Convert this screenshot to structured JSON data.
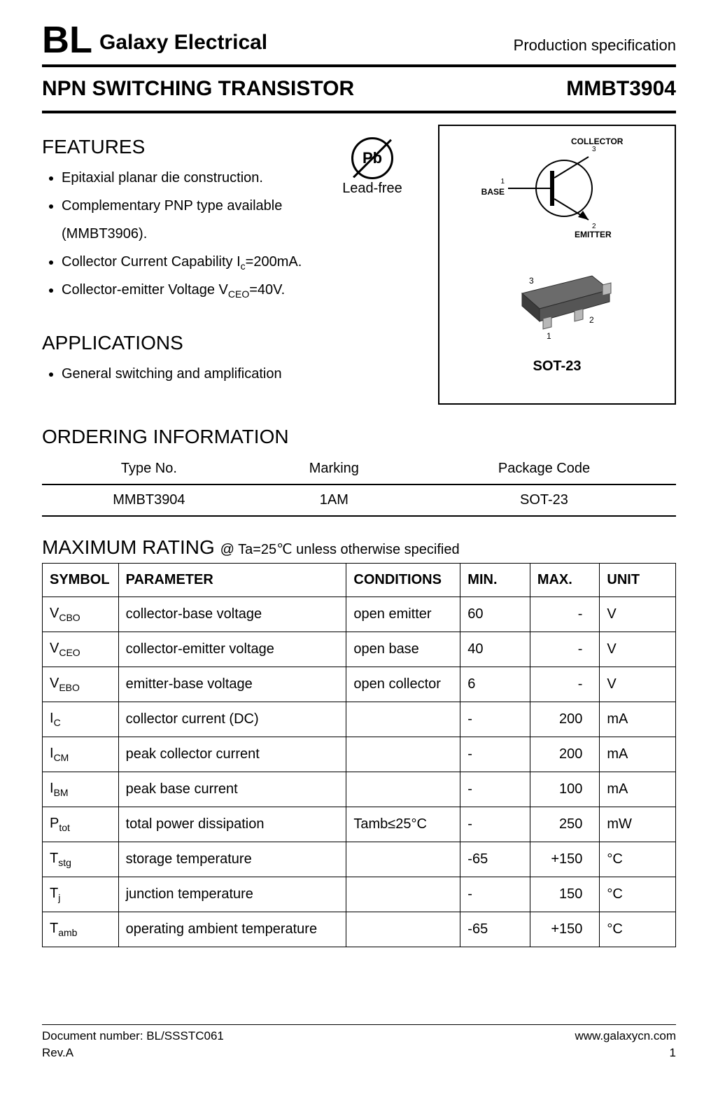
{
  "header": {
    "brand_logo": "BL",
    "brand_name": "Galaxy Electrical",
    "spec_label": "Production specification"
  },
  "title": {
    "main": "NPN SWITCHING TRANSISTOR",
    "part": "MMBT3904"
  },
  "leadfree": {
    "symbol": "Pb",
    "label": "Lead-free"
  },
  "features": {
    "heading": "FEATURES",
    "items": [
      "Epitaxial planar die construction.",
      "Complementary PNP type available (MMBT3906).",
      "Collector Current Capability I<sub>c</sub>=200mA.",
      "Collector-emitter Voltage V<sub>CEO</sub>=40V."
    ]
  },
  "applications": {
    "heading": "APPLICATIONS",
    "items": [
      "General switching and amplification"
    ]
  },
  "package": {
    "schematic_labels": {
      "collector": "COLLECTOR",
      "base": "BASE",
      "emitter": "EMITTER"
    },
    "pin1": "1",
    "pin2": "2",
    "pin3": "3",
    "name": "SOT-23"
  },
  "ordering": {
    "heading": "ORDERING INFORMATION",
    "columns": [
      "Type No.",
      "Marking",
      "Package Code"
    ],
    "rows": [
      [
        "MMBT3904",
        "1AM",
        "SOT-23"
      ]
    ]
  },
  "maxrating": {
    "heading": "MAXIMUM RATING",
    "subheading": "@ Ta=25℃ unless otherwise specified",
    "columns": [
      "SYMBOL",
      "PARAMETER",
      "CONDITIONS",
      "MIN.",
      "MAX.",
      "UNIT"
    ],
    "rows": [
      {
        "symbol": "V<sub>CBO</sub>",
        "parameter": "collector-base voltage",
        "conditions": "open emitter",
        "min": "60",
        "max": "-",
        "unit": "V"
      },
      {
        "symbol": "V<sub>CEO</sub>",
        "parameter": "collector-emitter voltage",
        "conditions": "open base",
        "min": "40",
        "max": "-",
        "unit": "V"
      },
      {
        "symbol": "V<sub>EBO</sub>",
        "parameter": "emitter-base voltage",
        "conditions": "open collector",
        "min": "6",
        "max": "-",
        "unit": "V"
      },
      {
        "symbol": "I<sub>C</sub>",
        "parameter": "collector current (DC)",
        "conditions": "",
        "min": "-",
        "max": "200",
        "unit": "mA"
      },
      {
        "symbol": "I<sub>CM</sub>",
        "parameter": "peak collector current",
        "conditions": "",
        "min": "-",
        "max": "200",
        "unit": "mA"
      },
      {
        "symbol": "I<sub>BM</sub>",
        "parameter": "peak base current",
        "conditions": "",
        "min": "-",
        "max": "100",
        "unit": "mA"
      },
      {
        "symbol": "P<sub>tot</sub>",
        "parameter": "total power dissipation",
        "conditions": "Tamb≤25°C",
        "min": "-",
        "max": "250",
        "unit": "mW"
      },
      {
        "symbol": "T<sub>stg</sub>",
        "parameter": "storage temperature",
        "conditions": "",
        "min": "-65",
        "max": "+150",
        "unit": "°C"
      },
      {
        "symbol": "T<sub>j</sub>",
        "parameter": "junction temperature",
        "conditions": "",
        "min": "-",
        "max": "150",
        "unit": "°C"
      },
      {
        "symbol": "T<sub>amb</sub>",
        "parameter": "operating ambient temperature",
        "conditions": "",
        "min": "-65",
        "max": "+150",
        "unit": "°C"
      }
    ],
    "col_widths": [
      "12%",
      "36%",
      "18%",
      "11%",
      "11%",
      "12%"
    ]
  },
  "footer": {
    "doc": "Document number: BL/SSSTC061",
    "url": "www.galaxycn.com",
    "rev": "Rev.A",
    "page": "1"
  },
  "colors": {
    "text": "#000000",
    "bg": "#ffffff",
    "border": "#000000"
  }
}
